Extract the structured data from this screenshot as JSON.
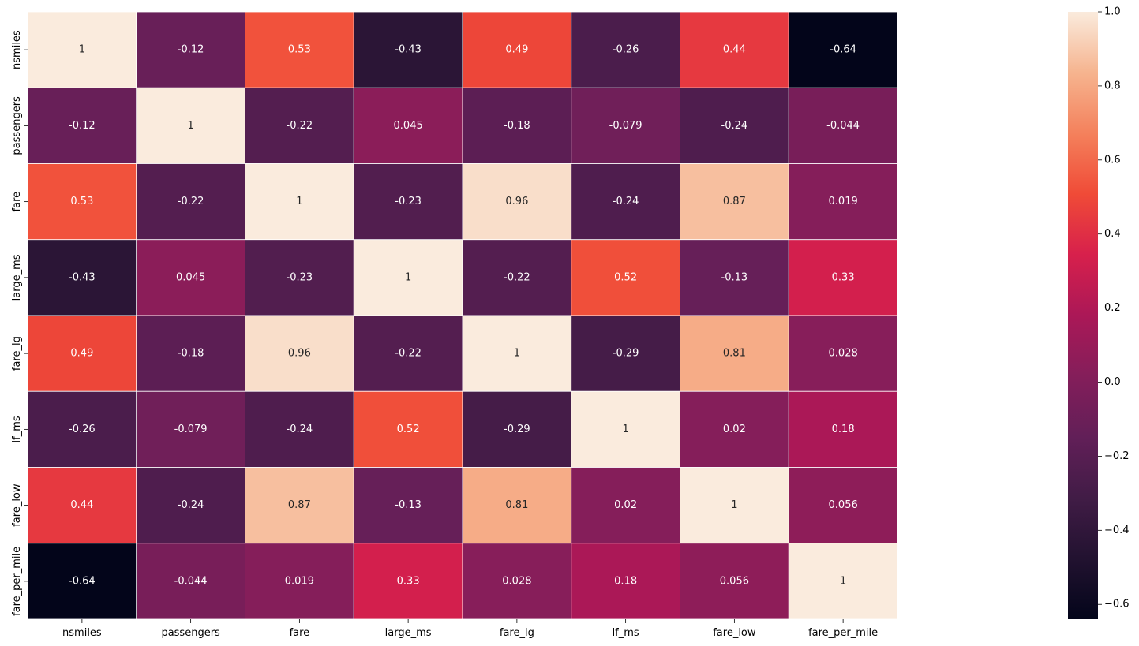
{
  "chart_data": {
    "type": "heatmap",
    "title": "",
    "xlabel": "",
    "ylabel": "",
    "x_categories": [
      "nsmiles",
      "passengers",
      "fare",
      "large_ms",
      "fare_lg",
      "lf_ms",
      "fare_low",
      "fare_per_mile"
    ],
    "y_categories": [
      "nsmiles",
      "passengers",
      "fare",
      "large_ms",
      "fare_lg",
      "lf_ms",
      "fare_low",
      "fare_per_mile"
    ],
    "values": [
      [
        1,
        -0.12,
        0.53,
        -0.43,
        0.49,
        -0.26,
        0.44,
        -0.64
      ],
      [
        -0.12,
        1,
        -0.22,
        0.045,
        -0.18,
        -0.079,
        -0.24,
        -0.044
      ],
      [
        0.53,
        -0.22,
        1,
        -0.23,
        0.96,
        -0.24,
        0.87,
        0.019
      ],
      [
        -0.43,
        0.045,
        -0.23,
        1,
        -0.22,
        0.52,
        -0.13,
        0.33
      ],
      [
        0.49,
        -0.18,
        0.96,
        -0.22,
        1,
        -0.29,
        0.81,
        0.028
      ],
      [
        -0.26,
        -0.079,
        -0.24,
        0.52,
        -0.29,
        1,
        0.02,
        0.18
      ],
      [
        0.44,
        -0.24,
        0.87,
        -0.13,
        0.81,
        0.02,
        1,
        0.056
      ],
      [
        -0.64,
        -0.044,
        0.019,
        0.33,
        0.028,
        0.18,
        0.056,
        1
      ]
    ],
    "colorbar": {
      "vmin": -0.64,
      "vmax": 1,
      "ticks": [
        -0.6,
        -0.4,
        -0.2,
        0.0,
        0.2,
        0.4,
        0.6,
        0.8,
        1.0
      ],
      "tick_labels": [
        "−0.6",
        "−0.4",
        "−0.2",
        "0.0",
        "0.2",
        "0.4",
        "0.6",
        "0.8",
        "1.0"
      ]
    },
    "colormap": "rocket",
    "annotations": true,
    "grid": false,
    "legend": "colorbar right"
  }
}
